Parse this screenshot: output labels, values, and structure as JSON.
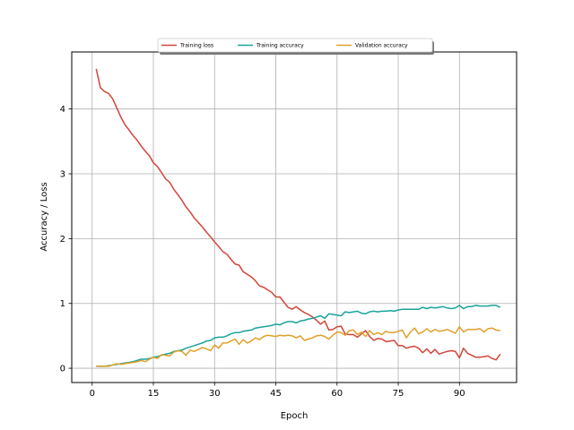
{
  "chart_data": {
    "type": "line",
    "xlabel": "Epoch",
    "ylabel": "Accuracy / Loss",
    "xlim": [
      -5,
      104
    ],
    "ylim": [
      -0.22,
      4.88
    ],
    "xticks": [
      0,
      15,
      30,
      45,
      60,
      75,
      90
    ],
    "yticks": [
      0,
      1,
      2,
      3,
      4
    ],
    "grid": true,
    "legend_position": "top-center",
    "x": [
      1,
      2,
      3,
      4,
      5,
      6,
      7,
      8,
      9,
      10,
      11,
      12,
      13,
      14,
      15,
      16,
      17,
      18,
      19,
      20,
      21,
      22,
      23,
      24,
      25,
      26,
      27,
      28,
      29,
      30,
      31,
      32,
      33,
      34,
      35,
      36,
      37,
      38,
      39,
      40,
      41,
      42,
      43,
      44,
      45,
      46,
      47,
      48,
      49,
      50,
      51,
      52,
      53,
      54,
      55,
      56,
      57,
      58,
      59,
      60,
      61,
      62,
      63,
      64,
      65,
      66,
      67,
      68,
      69,
      70,
      71,
      72,
      73,
      74,
      75,
      76,
      77,
      78,
      79,
      80,
      81,
      82,
      83,
      84,
      85,
      86,
      87,
      88,
      89,
      90,
      91,
      92,
      93,
      94,
      95,
      96,
      97,
      98,
      99,
      100
    ],
    "series": [
      {
        "name": "Training loss",
        "color": "#d1453b",
        "values": [
          4.62,
          4.33,
          4.27,
          4.24,
          4.16,
          4.02,
          3.88,
          3.76,
          3.68,
          3.59,
          3.52,
          3.43,
          3.35,
          3.28,
          3.17,
          3.11,
          3.02,
          2.92,
          2.87,
          2.76,
          2.68,
          2.59,
          2.49,
          2.41,
          2.32,
          2.25,
          2.18,
          2.1,
          2.03,
          1.95,
          1.88,
          1.8,
          1.76,
          1.68,
          1.61,
          1.59,
          1.49,
          1.45,
          1.41,
          1.35,
          1.27,
          1.25,
          1.21,
          1.17,
          1.1,
          1.1,
          1.02,
          0.94,
          0.91,
          0.95,
          0.9,
          0.86,
          0.83,
          0.79,
          0.74,
          0.68,
          0.73,
          0.59,
          0.6,
          0.64,
          0.65,
          0.53,
          0.52,
          0.52,
          0.48,
          0.53,
          0.58,
          0.49,
          0.43,
          0.46,
          0.45,
          0.41,
          0.42,
          0.43,
          0.35,
          0.35,
          0.31,
          0.33,
          0.34,
          0.31,
          0.24,
          0.3,
          0.23,
          0.29,
          0.22,
          0.24,
          0.26,
          0.27,
          0.26,
          0.16,
          0.31,
          0.23,
          0.2,
          0.17,
          0.17,
          0.18,
          0.19,
          0.15,
          0.13,
          0.22
        ]
      },
      {
        "name": "Training accuracy",
        "color": "#1aa39a",
        "values": [
          0.03,
          0.03,
          0.03,
          0.04,
          0.05,
          0.06,
          0.07,
          0.08,
          0.09,
          0.1,
          0.12,
          0.14,
          0.14,
          0.15,
          0.17,
          0.18,
          0.2,
          0.22,
          0.23,
          0.26,
          0.27,
          0.28,
          0.31,
          0.33,
          0.35,
          0.37,
          0.39,
          0.42,
          0.43,
          0.47,
          0.48,
          0.48,
          0.5,
          0.53,
          0.55,
          0.55,
          0.57,
          0.58,
          0.59,
          0.62,
          0.63,
          0.64,
          0.65,
          0.66,
          0.68,
          0.67,
          0.7,
          0.72,
          0.72,
          0.7,
          0.73,
          0.74,
          0.76,
          0.77,
          0.79,
          0.81,
          0.77,
          0.84,
          0.83,
          0.82,
          0.81,
          0.87,
          0.86,
          0.87,
          0.88,
          0.85,
          0.84,
          0.87,
          0.88,
          0.87,
          0.88,
          0.88,
          0.89,
          0.88,
          0.9,
          0.91,
          0.91,
          0.91,
          0.91,
          0.91,
          0.94,
          0.92,
          0.94,
          0.93,
          0.94,
          0.95,
          0.93,
          0.92,
          0.93,
          0.97,
          0.92,
          0.95,
          0.95,
          0.97,
          0.96,
          0.96,
          0.96,
          0.97,
          0.97,
          0.94
        ]
      },
      {
        "name": "Validation accuracy",
        "color": "#e0a02a",
        "values": [
          0.03,
          0.03,
          0.03,
          0.03,
          0.05,
          0.07,
          0.06,
          0.07,
          0.08,
          0.09,
          0.1,
          0.12,
          0.1,
          0.14,
          0.17,
          0.15,
          0.21,
          0.2,
          0.19,
          0.25,
          0.27,
          0.26,
          0.2,
          0.28,
          0.26,
          0.29,
          0.32,
          0.3,
          0.27,
          0.36,
          0.31,
          0.39,
          0.39,
          0.42,
          0.45,
          0.37,
          0.44,
          0.39,
          0.42,
          0.47,
          0.44,
          0.49,
          0.51,
          0.5,
          0.49,
          0.51,
          0.5,
          0.51,
          0.5,
          0.47,
          0.5,
          0.43,
          0.45,
          0.47,
          0.5,
          0.51,
          0.49,
          0.45,
          0.51,
          0.56,
          0.55,
          0.51,
          0.58,
          0.59,
          0.52,
          0.56,
          0.49,
          0.58,
          0.52,
          0.55,
          0.52,
          0.57,
          0.55,
          0.55,
          0.57,
          0.59,
          0.47,
          0.56,
          0.62,
          0.53,
          0.56,
          0.61,
          0.56,
          0.6,
          0.57,
          0.58,
          0.6,
          0.57,
          0.54,
          0.64,
          0.56,
          0.6,
          0.6,
          0.6,
          0.61,
          0.56,
          0.61,
          0.62,
          0.59,
          0.58
        ]
      }
    ]
  }
}
